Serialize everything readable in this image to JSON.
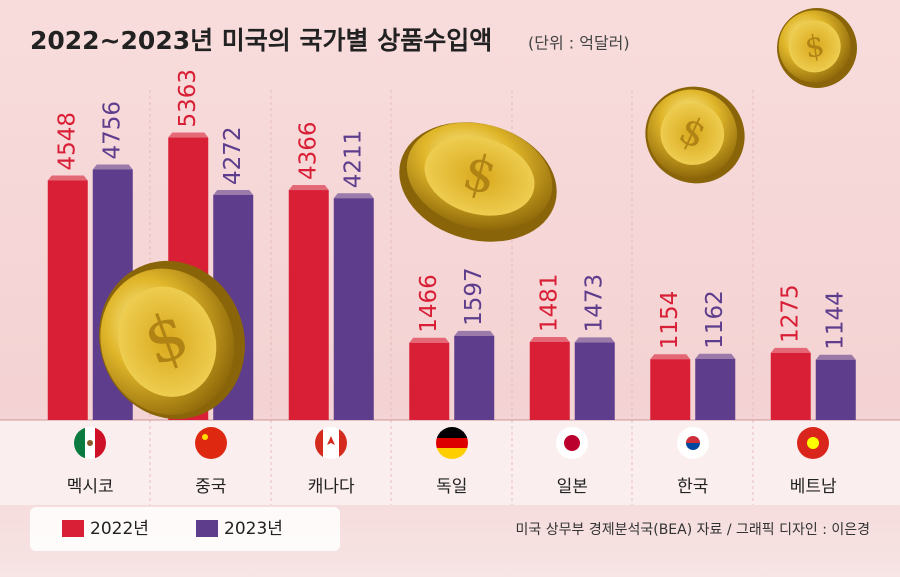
{
  "chart_data": {
    "type": "bar",
    "title": "2022~2023년 미국의 국가별 상품수입액",
    "subtitle": "(단위 : 억달러)",
    "categories": [
      "멕시코",
      "중국",
      "캐나다",
      "독일",
      "일본",
      "한국",
      "베트남"
    ],
    "series": [
      {
        "name": "2022년",
        "color": "#d81f35",
        "values": [
          4548,
          5363,
          4366,
          1466,
          1481,
          1154,
          1275
        ]
      },
      {
        "name": "2023년",
        "color": "#5d3d8c",
        "values": [
          4756,
          4272,
          4211,
          1597,
          1473,
          1162,
          1144
        ]
      }
    ],
    "ylim": [
      0,
      6000
    ],
    "source": "미국 상무부 경제분석국(BEA) 자료 / 그래픽 디자인 : 이은경"
  }
}
